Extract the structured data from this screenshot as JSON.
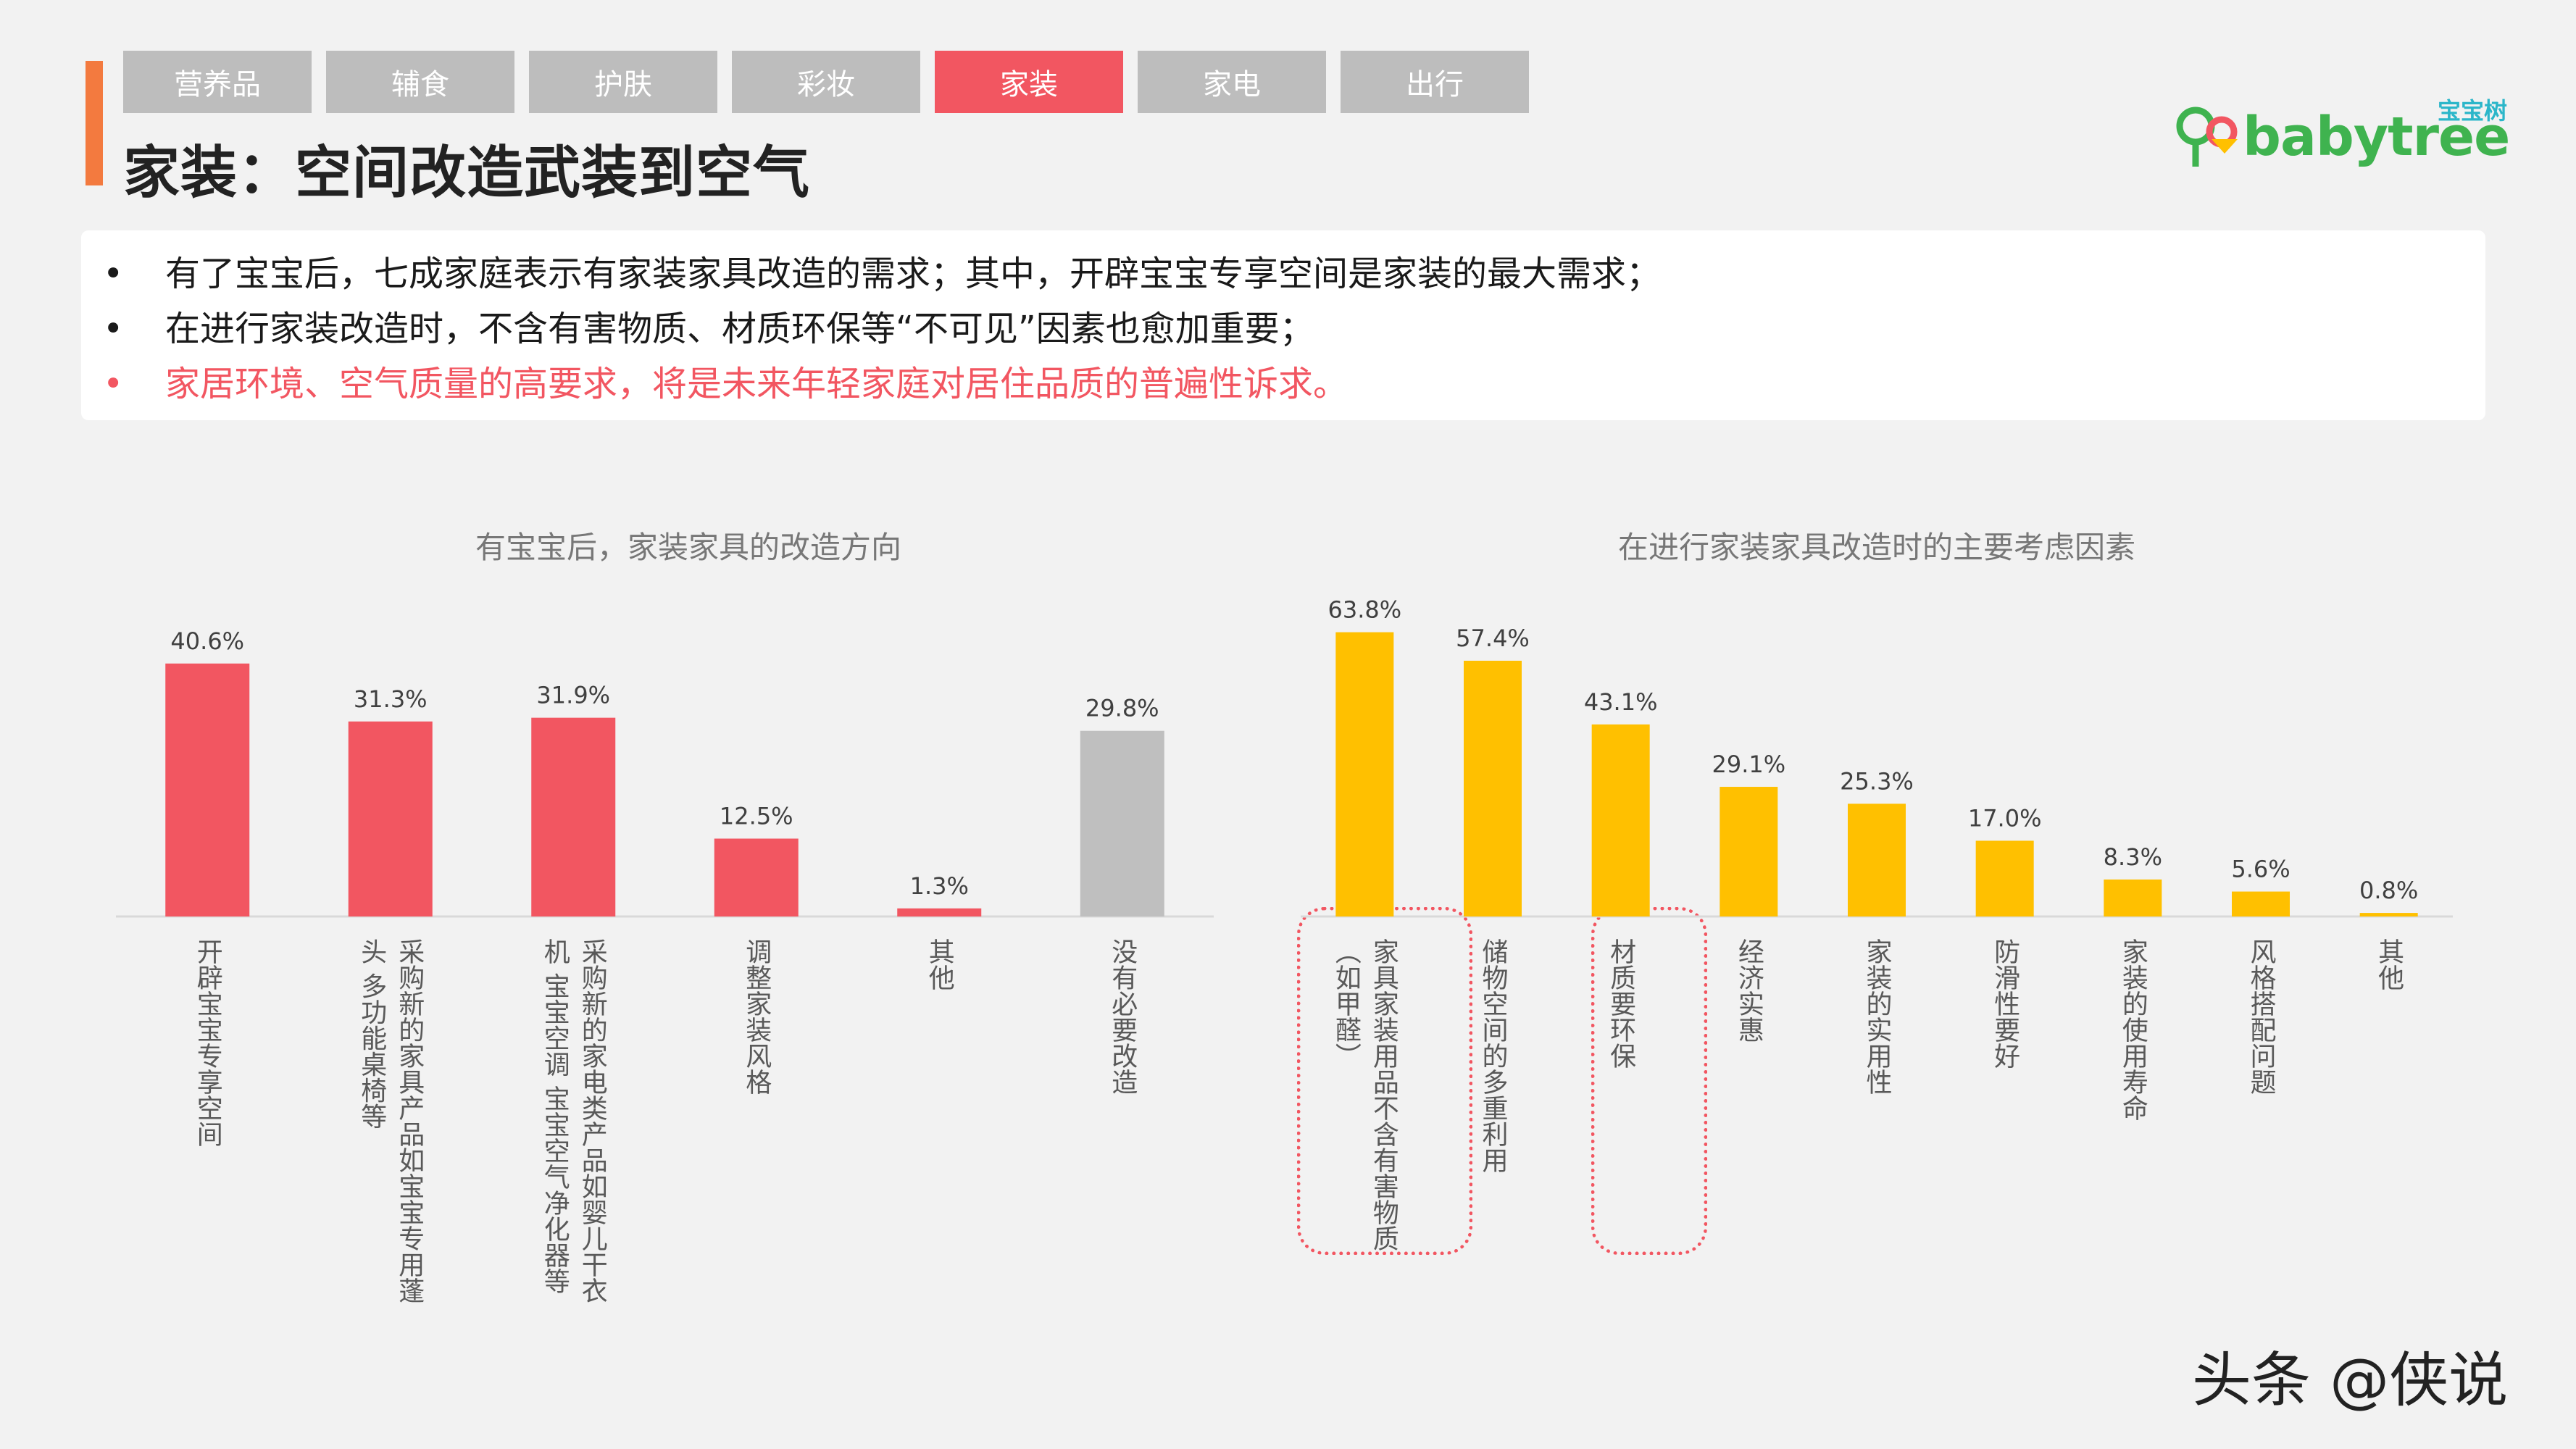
{
  "nav": {
    "tabs": [
      {
        "label": "营养品",
        "active": false
      },
      {
        "label": "辅食",
        "active": false
      },
      {
        "label": "护肤",
        "active": false
      },
      {
        "label": "彩妆",
        "active": false
      },
      {
        "label": "家装",
        "active": true
      },
      {
        "label": "家电",
        "active": false
      },
      {
        "label": "出行",
        "active": false
      }
    ]
  },
  "page_title": "家装：空间改造武装到空气",
  "logo": {
    "cn": "宝宝树",
    "text": "babytree"
  },
  "summary": {
    "points": [
      "有了宝宝后，七成家庭表示有家装家具改造的需求；其中，开辟宝宝专享空间是家装的最大需求；",
      "在进行家装改造时，不含有害物质、材质环保等“不可见”因素也愈加重要；",
      "家居环境、空气质量的高要求，将是未来年轻家庭对居住品质的普遍性诉求。"
    ],
    "bullet": "•"
  },
  "colors": {
    "accent_red": "#f25661",
    "accent_orange": "#f37a3f",
    "bar_yellow": "#ffc000",
    "bar_gray": "#bfbfbf",
    "tab_gray": "#bdbdbd"
  },
  "chart_data": [
    {
      "type": "bar",
      "title": "有宝宝后，家装家具的改造方向",
      "categories": [
        "开辟宝宝专享空间",
        "采购新的家具产品 如宝宝专用蓬头 多功能桌椅等",
        "采购新的家电类产品 如婴儿干衣机 宝宝空调 宝宝空气净化器等",
        "调整家装风格",
        "其他",
        "没有必要改造"
      ],
      "label_columns": [
        [
          "开辟宝宝专享空间"
        ],
        [
          "采购新的家具产品如宝宝专用蓬",
          "头 多功能桌椅等"
        ],
        [
          "采购新的家电类产品如婴儿干衣",
          "机 宝宝空调 宝宝空气净化器等"
        ],
        [
          "调整家装风格"
        ],
        [
          "其他"
        ],
        [
          "没有必要改造"
        ]
      ],
      "values": [
        40.6,
        31.3,
        31.9,
        12.5,
        1.3,
        29.8
      ],
      "value_labels": [
        "40.6%",
        "31.3%",
        "31.9%",
        "12.5%",
        "1.3%",
        "29.8%"
      ],
      "bar_colors": [
        "#f25661",
        "#f25661",
        "#f25661",
        "#f25661",
        "#f25661",
        "#bfbfbf"
      ],
      "unit": "%"
    },
    {
      "type": "bar",
      "title": "在进行家装家具改造时的主要考虑因素",
      "categories": [
        "家具家装用品不含有害物质（如甲醛）",
        "储物空间的多重利用",
        "材质要环保",
        "经济实惠",
        "家装的实用性",
        "防滑性要好",
        "家装的使用寿命",
        "风格搭配问题",
        "其他"
      ],
      "label_columns": [
        [
          "家具家装用品不含有害物质",
          "（如甲醛）"
        ],
        [
          "储物空间的多重利用"
        ],
        [
          "材质要环保"
        ],
        [
          "经济实惠"
        ],
        [
          "家装的实用性"
        ],
        [
          "防滑性要好"
        ],
        [
          "家装的使用寿命"
        ],
        [
          "风格搭配问题"
        ],
        [
          "其他"
        ]
      ],
      "values": [
        63.8,
        57.4,
        43.1,
        29.1,
        25.3,
        17.0,
        8.3,
        5.6,
        0.8
      ],
      "value_labels": [
        "63.8%",
        "57.4%",
        "43.1%",
        "29.1%",
        "25.3%",
        "17.0%",
        "8.3%",
        "5.6%",
        "0.8%"
      ],
      "bar_colors": [
        "#ffc000"
      ],
      "highlighted_categories": [
        0,
        2
      ],
      "unit": "%"
    }
  ],
  "watermark": "头条 @侠说"
}
